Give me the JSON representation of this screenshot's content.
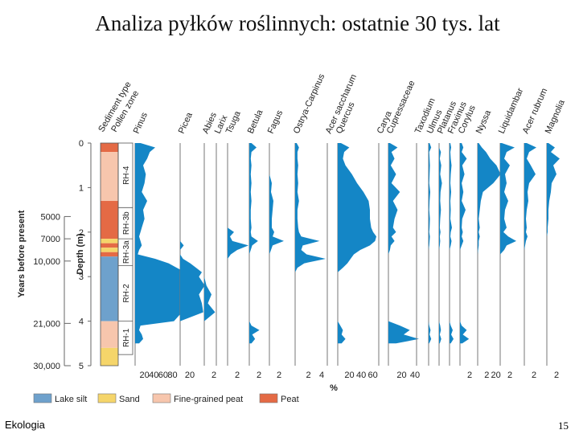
{
  "slide": {
    "title": "Analiza pyłków roślinnych: ostatnie 30 tys. lat",
    "footer_left": "Ekologia",
    "page_number": "15"
  },
  "chart_data": {
    "type": "area",
    "title": "Analiza pyłków roślinnych: ostatnie 30 tys. lat",
    "xlabel": "%",
    "depth_axis": {
      "label": "Depth (m)",
      "ticks": [
        "0",
        "1",
        "2",
        "3",
        "4",
        "5"
      ],
      "range": [
        0,
        5
      ]
    },
    "years_axis": {
      "label": "Years before present",
      "ticks": [
        {
          "label": "5000",
          "depth": 1.65
        },
        {
          "label": "7000",
          "depth": 2.15
        },
        {
          "label": "10,000",
          "depth": 2.65
        },
        {
          "label": "21,000",
          "depth": 4.05
        },
        {
          "label": "30,000",
          "depth": 5.0
        }
      ]
    },
    "strat_headers": [
      "Sediment type",
      "Pollen zone"
    ],
    "sediment_layers": [
      {
        "type": "peat",
        "top": 0.0,
        "bottom": 0.2
      },
      {
        "type": "fine",
        "top": 0.2,
        "bottom": 1.3
      },
      {
        "type": "peat",
        "top": 1.3,
        "bottom": 2.15
      },
      {
        "type": "sand",
        "top": 2.15,
        "bottom": 2.25
      },
      {
        "type": "peat",
        "top": 2.25,
        "bottom": 2.35
      },
      {
        "type": "sand",
        "top": 2.35,
        "bottom": 2.45
      },
      {
        "type": "peat",
        "top": 2.45,
        "bottom": 2.55
      },
      {
        "type": "lake",
        "top": 2.55,
        "bottom": 4.0
      },
      {
        "type": "fine",
        "top": 4.0,
        "bottom": 4.6
      },
      {
        "type": "sand",
        "top": 4.6,
        "bottom": 5.0
      }
    ],
    "pollen_zones": [
      {
        "label": "RH-4",
        "top": 0.0,
        "bottom": 1.45
      },
      {
        "label": "RH-3b",
        "top": 1.45,
        "bottom": 2.15
      },
      {
        "label": "RH-3a",
        "top": 2.15,
        "bottom": 2.75
      },
      {
        "label": "RH-2",
        "top": 2.75,
        "bottom": 4.0
      },
      {
        "label": "RH-1",
        "top": 4.0,
        "bottom": 4.75
      }
    ],
    "depths": [
      0.0,
      0.1,
      0.2,
      0.35,
      0.5,
      0.7,
      0.9,
      1.1,
      1.3,
      1.5,
      1.7,
      1.9,
      2.0,
      2.1,
      2.2,
      2.3,
      2.4,
      2.5,
      2.6,
      2.7,
      2.8,
      2.9,
      3.0,
      3.2,
      3.4,
      3.6,
      3.8,
      4.0,
      4.1,
      4.2,
      4.3,
      4.4,
      4.5
    ],
    "series": [
      {
        "name": "Pinus",
        "scale": 60,
        "ticks": [
          "20",
          "40",
          "60",
          "80"
        ],
        "values": [
          8,
          30,
          22,
          18,
          12,
          16,
          14,
          10,
          18,
          12,
          14,
          10,
          8,
          6,
          8,
          10,
          6,
          4,
          30,
          50,
          62,
          75,
          78,
          75,
          72,
          78,
          70,
          58,
          8,
          6,
          10,
          12,
          6
        ]
      },
      {
        "name": "Picea",
        "scale": 40,
        "ticks": [
          "20"
        ],
        "values": [
          0,
          0,
          0,
          0,
          0,
          0,
          0,
          0,
          0,
          0,
          0,
          0,
          0,
          0,
          0,
          5,
          0,
          0,
          4,
          14,
          22,
          30,
          26,
          34,
          26,
          30,
          32,
          0,
          0,
          0,
          0,
          0,
          0
        ]
      },
      {
        "name": "Abies",
        "scale": 2,
        "ticks": [
          "2"
        ],
        "values": [
          0,
          0,
          0,
          0,
          0,
          0,
          0,
          0,
          0,
          0,
          0,
          0,
          0,
          0,
          0,
          0,
          0,
          0,
          0,
          0,
          0,
          0,
          0,
          0.3,
          1.0,
          0.5,
          1.5,
          0,
          0,
          0,
          0,
          0,
          0
        ]
      },
      {
        "name": "Larix",
        "scale": 2,
        "ticks": [],
        "values": [
          0,
          0,
          0,
          0,
          0,
          0,
          0,
          0,
          0,
          0,
          0,
          0,
          0,
          0,
          0,
          0,
          0,
          0,
          0,
          0,
          0,
          0,
          0,
          0,
          0,
          0,
          0,
          0,
          0,
          0,
          0,
          0,
          0
        ]
      },
      {
        "name": "Tsuga",
        "scale": 2,
        "ticks": [
          "2"
        ],
        "values": [
          0,
          0,
          0,
          0,
          0,
          0,
          0,
          0,
          0,
          0,
          0,
          0,
          0.8,
          0.3,
          0.6,
          2.6,
          1.2,
          0.4,
          0,
          0,
          0,
          0,
          0,
          0,
          0,
          0,
          0,
          0,
          0,
          0,
          0,
          0,
          0
        ]
      },
      {
        "name": "Betula",
        "scale": 2,
        "ticks": [
          "2"
        ],
        "values": [
          0.3,
          1.0,
          0.3,
          0.2,
          0.3,
          0.2,
          0.3,
          0.2,
          0.3,
          0.2,
          0.2,
          0.3,
          0.2,
          0.3,
          1.2,
          0.4,
          0.2,
          0,
          0,
          0,
          0,
          0,
          0,
          0,
          0,
          0,
          0,
          0,
          0.3,
          1.4,
          0.4,
          0.8,
          0.3
        ]
      },
      {
        "name": "Fagus",
        "scale": 2,
        "ticks": [
          "2"
        ],
        "values": [
          0,
          0,
          0,
          0,
          0,
          0,
          0.3,
          0.2,
          0.5,
          0.4,
          0.3,
          0.3,
          0.6,
          0.4,
          1.8,
          0.4,
          0.2,
          0,
          0,
          0,
          0,
          0,
          0,
          0,
          0,
          0,
          0,
          0,
          0,
          0,
          0,
          0,
          0
        ]
      },
      {
        "name": "Ostrya-Carpinus",
        "scale": 4,
        "ticks": [
          "2",
          "4"
        ],
        "values": [
          0.2,
          0.5,
          0.3,
          0.3,
          0.4,
          0.3,
          0.4,
          0.3,
          0.5,
          0.3,
          0.3,
          0.4,
          0.5,
          0.8,
          3.2,
          1.0,
          0.8,
          1.5,
          4.0,
          1.2,
          0.3,
          0,
          0,
          0,
          0,
          0,
          0,
          0,
          0,
          0,
          0,
          0,
          0
        ]
      },
      {
        "name": "Acer saccharum",
        "scale": 2,
        "ticks": [],
        "values": [
          0,
          0,
          0,
          0,
          0,
          0,
          0,
          0,
          0,
          0,
          0,
          0,
          0,
          0,
          0,
          0,
          0,
          0,
          0,
          0,
          0,
          0,
          0,
          0,
          0,
          0,
          0,
          0,
          0,
          0,
          0,
          0,
          0
        ]
      },
      {
        "name": "Quercus",
        "scale": 60,
        "ticks": [
          "20",
          "40",
          "60"
        ],
        "values": [
          5,
          18,
          10,
          8,
          12,
          22,
          30,
          40,
          48,
          50,
          50,
          52,
          55,
          60,
          58,
          50,
          35,
          25,
          20,
          15,
          8,
          0,
          0,
          0,
          0,
          0,
          0,
          0,
          4,
          8,
          6,
          12,
          6
        ]
      },
      {
        "name": "Carya",
        "scale": 2,
        "ticks": [],
        "values": [
          0,
          0,
          0,
          0,
          0,
          0,
          0,
          0,
          0,
          0,
          0,
          0,
          0,
          0,
          0,
          0,
          0,
          0,
          0,
          0,
          0,
          0,
          0,
          0,
          0,
          0,
          0,
          0,
          0,
          0,
          0,
          0,
          0
        ]
      },
      {
        "name": "Cupressaceae",
        "scale": 40,
        "ticks": [
          "20",
          "40"
        ],
        "values": [
          2,
          12,
          4,
          8,
          3,
          10,
          4,
          15,
          6,
          12,
          8,
          6,
          10,
          4,
          8,
          3,
          2,
          0,
          0,
          0,
          0,
          0,
          0,
          0,
          0,
          0,
          0,
          0,
          15,
          28,
          20,
          40,
          10
        ]
      },
      {
        "name": "Taxodium",
        "scale": 2,
        "ticks": [],
        "values": [
          0,
          0,
          0,
          0,
          0,
          0,
          0,
          0,
          0,
          0,
          0,
          0,
          0,
          0,
          0,
          0,
          0,
          0,
          0,
          0,
          0,
          0,
          0,
          0,
          0,
          0,
          0,
          0,
          0,
          0,
          0,
          0,
          0
        ]
      },
      {
        "name": "Ulmus",
        "scale": 2,
        "ticks": [],
        "values": [
          0.3,
          0.8,
          0.2,
          0.3,
          0.4,
          0.3,
          0.2,
          0.5,
          0.3,
          0.2,
          0.4,
          0.3,
          0.2,
          0.4,
          0.3,
          0.2,
          0,
          0,
          0,
          0,
          0,
          0,
          0,
          0,
          0,
          0,
          0,
          0,
          0.2,
          0.6,
          0.3,
          0.8,
          0.2
        ]
      },
      {
        "name": "Platanus",
        "scale": 2,
        "ticks": [],
        "values": [
          0,
          0,
          0.5,
          0.2,
          0.6,
          0.3,
          0.8,
          0.4,
          0.3,
          0.5,
          0.3,
          0.2,
          0.4,
          0.2,
          0.3,
          0.2,
          0,
          0,
          0,
          0,
          0,
          0,
          0,
          0,
          0,
          0,
          0,
          0,
          0.3,
          0.5,
          0.2,
          0.6,
          0.2
        ]
      },
      {
        "name": "Fraxinus",
        "scale": 2,
        "ticks": [],
        "values": [
          0.2,
          0.4,
          0.2,
          0.3,
          0.5,
          0.3,
          0.2,
          0.4,
          0.2,
          0.3,
          0.2,
          0.6,
          0.3,
          0.2,
          0.5,
          0.3,
          0,
          0,
          0,
          0,
          0,
          0,
          0,
          0,
          0,
          0,
          0,
          0,
          0.3,
          0.8,
          0.4,
          1.0,
          0.3
        ]
      },
      {
        "name": "Corylus",
        "scale": 2,
        "ticks": [
          "2"
        ],
        "values": [
          0.3,
          0.6,
          0.3,
          1.2,
          0.4,
          0.8,
          0.3,
          0.6,
          0.3,
          1.0,
          0.4,
          0.3,
          0.5,
          0.3,
          0.6,
          0.3,
          0,
          0,
          0,
          0,
          0,
          0,
          0,
          0,
          0,
          0,
          0,
          0,
          0.3,
          1.2,
          0.5,
          1.6,
          0.4
        ]
      },
      {
        "name": "Nyssa",
        "scale": 20,
        "ticks": [
          "2",
          "20"
        ],
        "values": [
          1,
          4,
          8,
          12,
          18,
          22,
          15,
          5,
          3,
          2,
          1,
          2,
          1,
          2,
          1,
          1,
          0.5,
          0,
          0,
          0,
          0,
          0,
          0,
          0,
          0,
          0,
          0,
          0,
          0,
          0,
          0,
          0,
          0
        ]
      },
      {
        "name": "Liquidambar",
        "scale": 2,
        "ticks": [
          "2"
        ],
        "values": [
          0.2,
          1.8,
          0.8,
          0.5,
          1.2,
          0.6,
          0.8,
          0.5,
          1.0,
          0.6,
          0.5,
          0.8,
          0.4,
          1.0,
          2.0,
          0.8,
          0.5,
          0,
          0,
          0,
          0,
          0,
          0,
          0,
          0,
          0,
          0,
          0,
          0,
          0,
          0,
          0,
          0
        ]
      },
      {
        "name": "Acer rubrum",
        "scale": 2,
        "ticks": [
          "2"
        ],
        "values": [
          0.3,
          1.5,
          0.6,
          0.3,
          0.8,
          1.4,
          0.6,
          0.4,
          0.5,
          0.3,
          0.2,
          0.3,
          0.2,
          0.4,
          0.2,
          0.1,
          0,
          0,
          0,
          0,
          0,
          0,
          0,
          0,
          0,
          0,
          0,
          0,
          0,
          0,
          0,
          0,
          0
        ]
      },
      {
        "name": "Magnolia",
        "scale": 2,
        "ticks": [
          "2"
        ],
        "values": [
          0.2,
          1.0,
          0.5,
          1.6,
          0.8,
          1.2,
          0.6,
          0.5,
          0.3,
          0.2,
          0.2,
          0.1,
          0.1,
          0,
          0,
          0,
          0,
          0,
          0,
          0,
          0,
          0,
          0,
          0,
          0,
          0,
          0,
          0,
          0,
          0,
          0,
          0,
          0
        ]
      }
    ],
    "legend": [
      {
        "key": "lake",
        "label": "Lake silt",
        "color": "#6ea1cc"
      },
      {
        "key": "sand",
        "label": "Sand",
        "color": "#f5d56a"
      },
      {
        "key": "fine",
        "label": "Fine-grained peat",
        "color": "#f7c6ad"
      },
      {
        "key": "peat",
        "label": "Peat",
        "color": "#e46a45"
      }
    ],
    "curve_color": "#1486c6",
    "axis_line_color": "#777777"
  }
}
